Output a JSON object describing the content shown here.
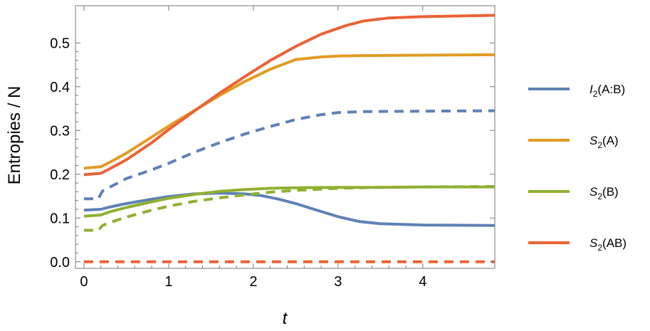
{
  "chart_data": {
    "type": "line",
    "xlabel": "t",
    "ylabel": "Entropies / N",
    "xlim": [
      -0.1,
      4.85
    ],
    "ylim": [
      -0.015,
      0.585
    ],
    "xticks": [
      "0",
      "1",
      "2",
      "3",
      "4"
    ],
    "yticks": [
      "0.0",
      "0.1",
      "0.2",
      "0.3",
      "0.4",
      "0.5"
    ],
    "legend_position": "right",
    "series": [
      {
        "legend_main": "I",
        "legend_sub": "2",
        "legend_tail": "(A:B)",
        "color": "#5e81b5",
        "style": "solid",
        "x": [
          0,
          0.2,
          0.3,
          0.5,
          0.8,
          1.0,
          1.3,
          1.6,
          1.9,
          2.1,
          2.3,
          2.5,
          2.8,
          3.0,
          3.25,
          3.5,
          4.0,
          4.85
        ],
        "values": [
          0.118,
          0.12,
          0.125,
          0.133,
          0.143,
          0.149,
          0.155,
          0.157,
          0.155,
          0.151,
          0.143,
          0.133,
          0.115,
          0.103,
          0.092,
          0.087,
          0.084,
          0.083
        ]
      },
      {
        "legend_main": "",
        "legend_sub": "",
        "legend_tail": "",
        "color": "#5e81b5",
        "style": "dashed",
        "x": [
          0,
          0.17,
          0.22,
          0.3,
          0.5,
          0.8,
          1.0,
          1.3,
          1.6,
          1.9,
          2.2,
          2.5,
          2.8,
          3.0,
          3.3,
          4.0,
          4.85
        ],
        "values": [
          0.144,
          0.144,
          0.162,
          0.17,
          0.19,
          0.21,
          0.225,
          0.25,
          0.272,
          0.292,
          0.309,
          0.325,
          0.336,
          0.341,
          0.343,
          0.344,
          0.345
        ]
      },
      {
        "legend_main": "S",
        "legend_sub": "2",
        "legend_tail": "(A)",
        "color": "#e19c24",
        "style": "solid",
        "x": [
          0,
          0.2,
          0.3,
          0.5,
          0.8,
          1.0,
          1.3,
          1.6,
          1.9,
          2.2,
          2.5,
          2.8,
          3.0,
          3.3,
          4.0,
          4.85
        ],
        "values": [
          0.214,
          0.217,
          0.227,
          0.248,
          0.285,
          0.31,
          0.345,
          0.38,
          0.412,
          0.44,
          0.462,
          0.468,
          0.47,
          0.471,
          0.472,
          0.473
        ]
      },
      {
        "legend_main": "S",
        "legend_sub": "2",
        "legend_tail": "(B)",
        "color": "#8fb032",
        "style": "solid",
        "x": [
          0,
          0.2,
          0.3,
          0.5,
          0.8,
          1.0,
          1.3,
          1.6,
          1.9,
          2.2,
          2.5,
          3.0,
          3.5,
          4.0,
          4.85
        ],
        "values": [
          0.104,
          0.107,
          0.114,
          0.124,
          0.137,
          0.145,
          0.154,
          0.161,
          0.165,
          0.168,
          0.169,
          0.17,
          0.17,
          0.171,
          0.171
        ]
      },
      {
        "legend_main": "",
        "legend_sub": "",
        "legend_tail": "",
        "color": "#8fb032",
        "style": "dashed",
        "x": [
          0,
          0.17,
          0.22,
          0.3,
          0.5,
          0.8,
          1.0,
          1.3,
          1.6,
          1.9,
          2.2,
          2.5,
          3.0,
          3.5,
          4.0,
          4.85
        ],
        "values": [
          0.072,
          0.072,
          0.083,
          0.089,
          0.102,
          0.118,
          0.127,
          0.138,
          0.146,
          0.153,
          0.159,
          0.163,
          0.168,
          0.17,
          0.171,
          0.172
        ]
      },
      {
        "legend_main": "S",
        "legend_sub": "2",
        "legend_tail": "(AB)",
        "color": "#eb6235",
        "style": "solid",
        "x": [
          0,
          0.2,
          0.3,
          0.5,
          0.8,
          1.0,
          1.3,
          1.6,
          1.9,
          2.2,
          2.5,
          2.8,
          3.1,
          3.3,
          3.6,
          4.0,
          4.85
        ],
        "values": [
          0.199,
          0.202,
          0.212,
          0.233,
          0.272,
          0.302,
          0.344,
          0.385,
          0.423,
          0.46,
          0.492,
          0.52,
          0.54,
          0.55,
          0.557,
          0.56,
          0.563
        ]
      },
      {
        "legend_main": "",
        "legend_sub": "",
        "legend_tail": "",
        "color": "#eb6235",
        "style": "dashed",
        "x": [
          0,
          4.85
        ],
        "values": [
          0.0,
          0.0
        ]
      }
    ]
  }
}
